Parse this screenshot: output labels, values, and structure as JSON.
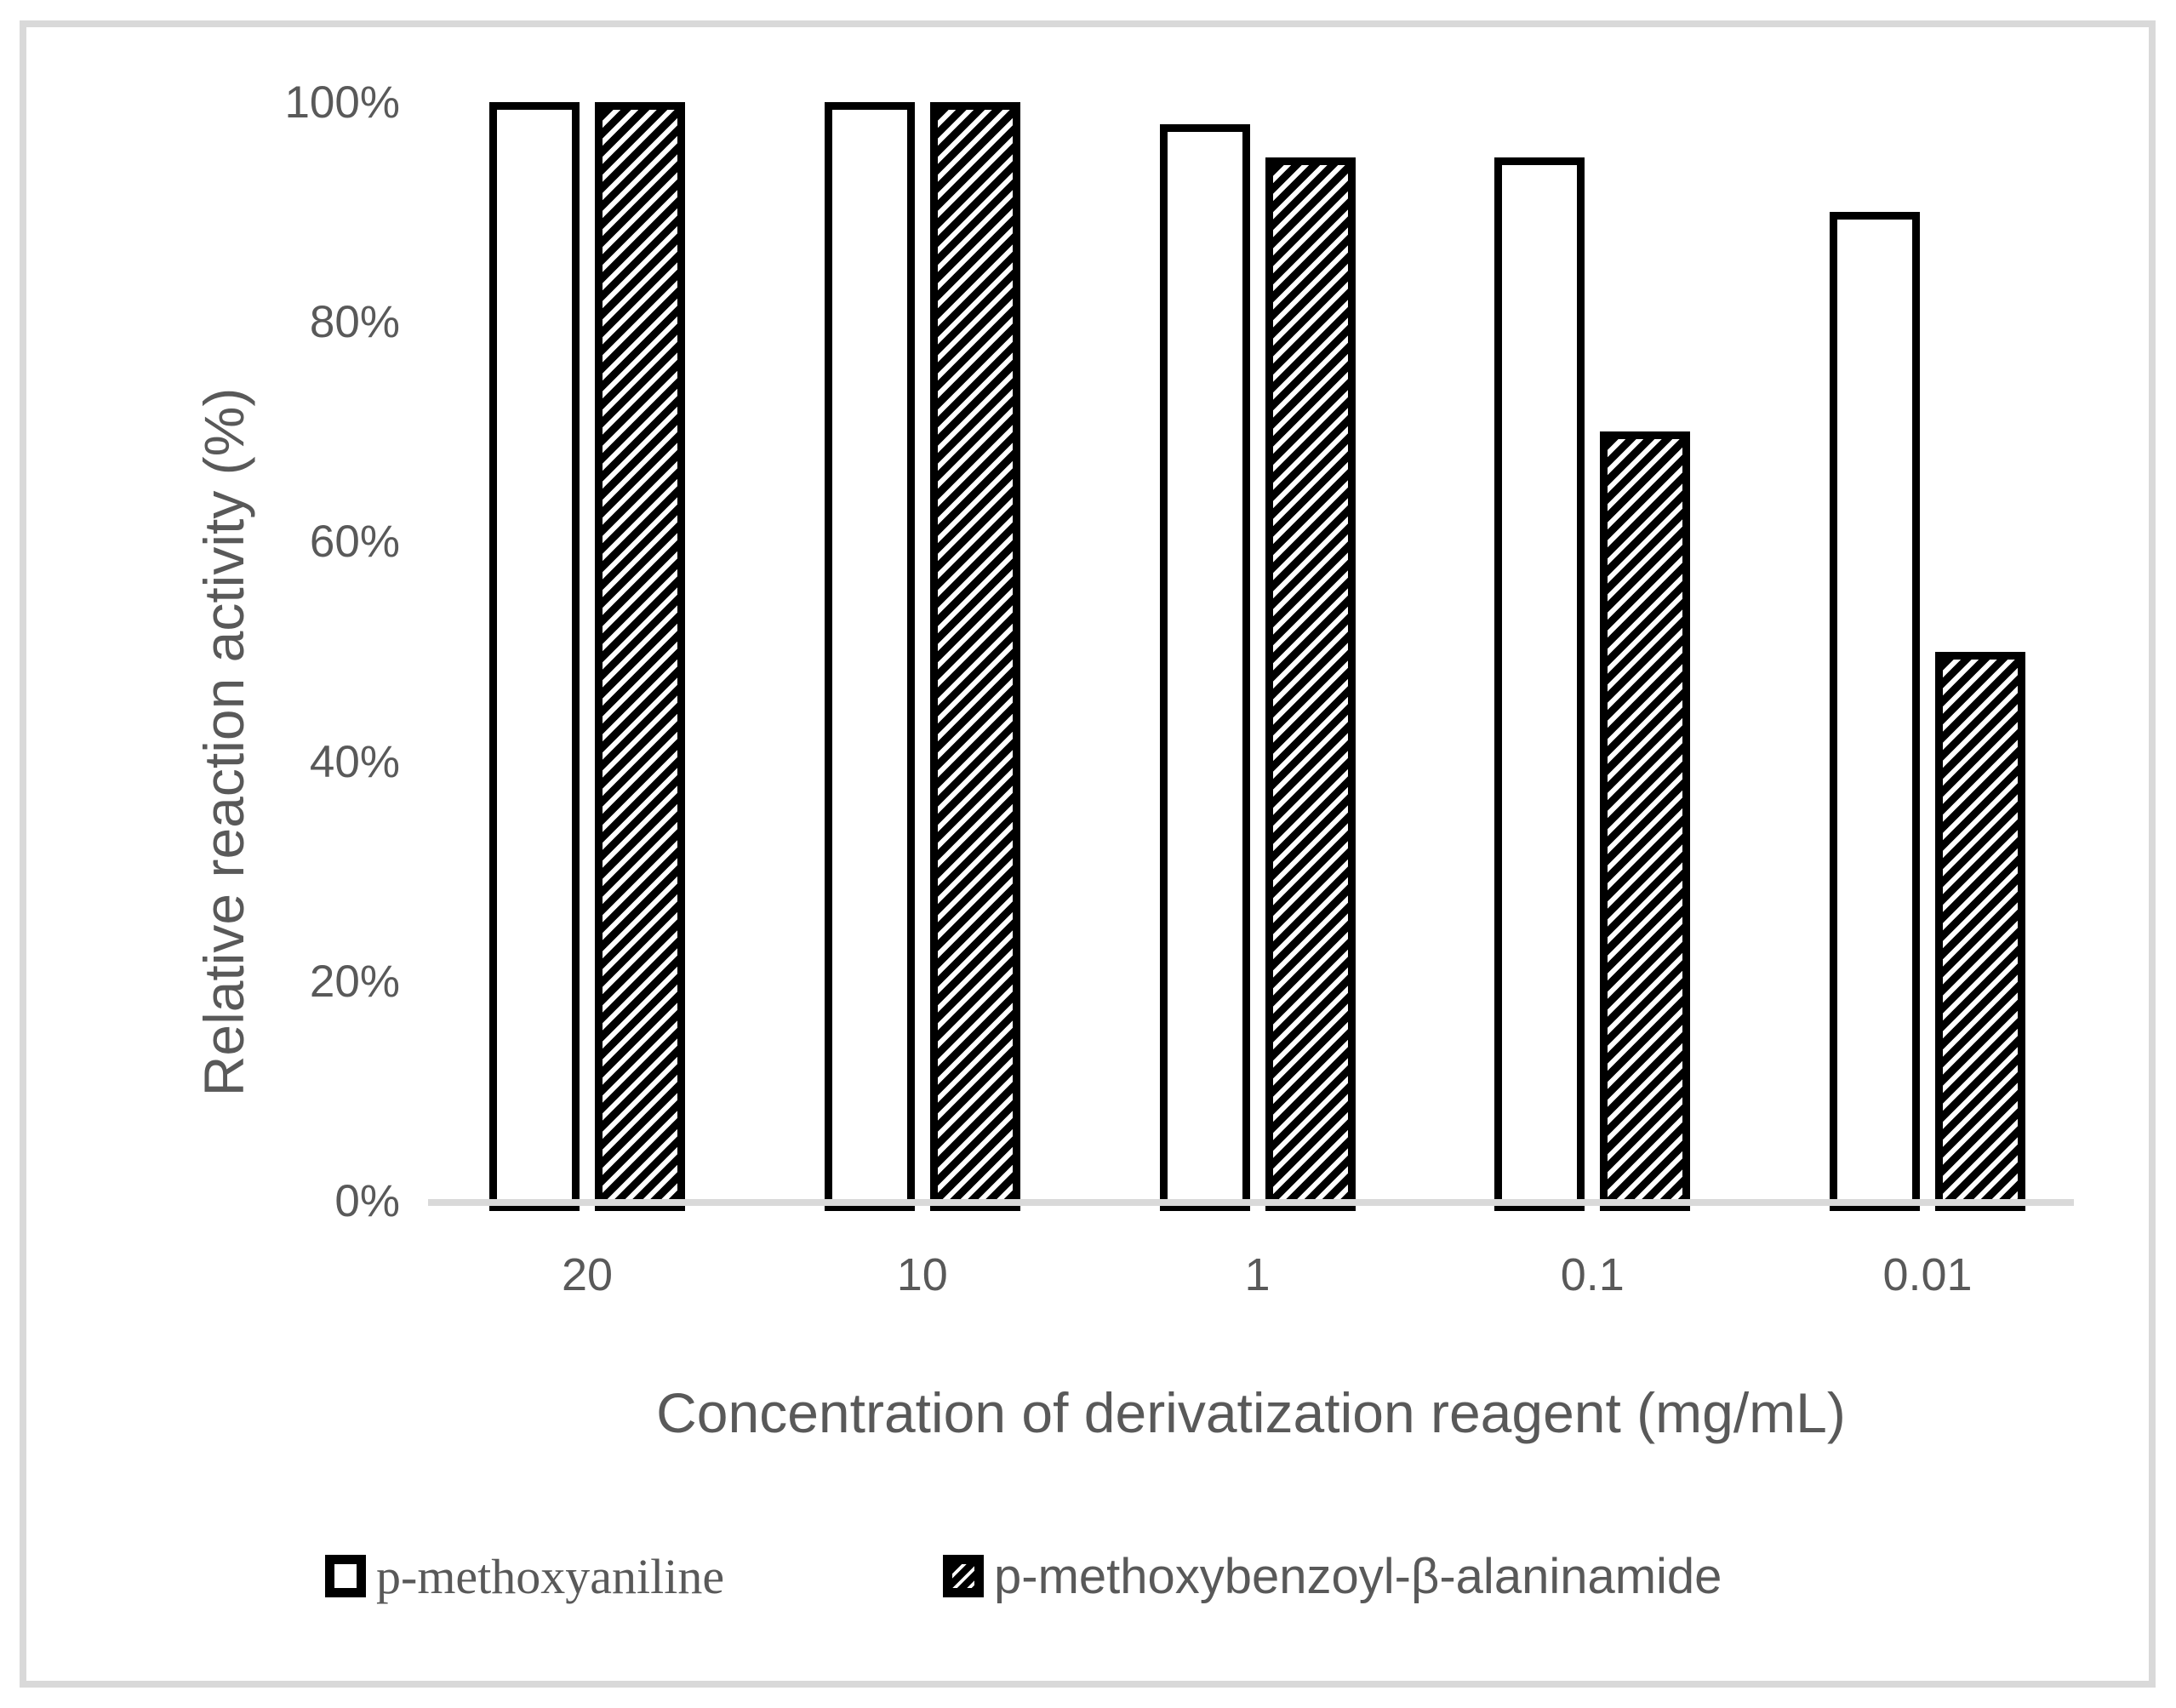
{
  "chart_data": {
    "type": "bar",
    "title": "",
    "categories": [
      "20",
      "10",
      "1",
      "0.1",
      "0.01"
    ],
    "series": [
      {
        "name": "p-methoxyaniline",
        "style": "white",
        "label_font": "serif",
        "values_pct": [
          100,
          100,
          98,
          95,
          90
        ]
      },
      {
        "name": "p-methoxybenzoyl-β-alaninamide",
        "style": "hatched",
        "label_font": "sans",
        "values_pct": [
          100,
          100,
          95,
          70,
          50
        ]
      }
    ],
    "xlabel": "Concentration of derivatization reagent (mg/mL)",
    "ylabel": "Relative reaction activity (%)",
    "y_ticks": [
      {
        "value_pct": 0,
        "label": "0%"
      },
      {
        "value_pct": 20,
        "label": "20%"
      },
      {
        "value_pct": 40,
        "label": "40%"
      },
      {
        "value_pct": 60,
        "label": "60%"
      },
      {
        "value_pct": 80,
        "label": "80%"
      },
      {
        "value_pct": 100,
        "label": "100%"
      }
    ],
    "ylim": [
      0,
      1
    ],
    "grid": false,
    "legend_position": "bottom"
  },
  "colors": {
    "text": "#595959",
    "axis_line": "#d9d9d9",
    "frame": "#d9d9d9",
    "bar_fill": "#ffffff",
    "bar_border": "#000000",
    "hatch_black": "#000000",
    "hatch_white": "#ffffff"
  }
}
